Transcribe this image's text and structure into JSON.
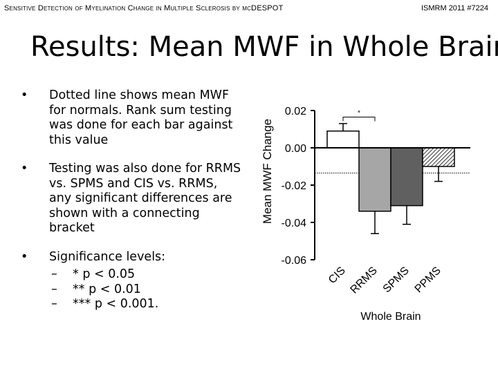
{
  "header": {
    "left": "Sensitive Detection of Myelination Change in Multiple Sclerosis by mcDESPOT",
    "right": "ISMRM 2011 #7224"
  },
  "slide": {
    "title": "Results: Mean MWF in Whole Brain",
    "bullets": [
      "Dotted line shows mean MWF for normals. Rank sum testing was done for each bar against this value",
      "Testing was also done for RRMS vs. SPMS and CIS vs. RRMS, any significant differences are shown with a connecting bracket",
      "Significance levels:"
    ],
    "sub_bullets": [
      "* p < 0.05",
      "** p < 0.01",
      "*** p < 0.001."
    ],
    "bullet_symbol": "•",
    "sub_bullet_symbol": "–"
  },
  "chart_data": {
    "type": "bar",
    "xlabel": "Whole Brain",
    "ylabel": "Mean MWF Change",
    "ylim": [
      -0.06,
      0.02
    ],
    "yticks": [
      "0.02",
      "0.00",
      "-0.02",
      "-0.04",
      "-0.06"
    ],
    "categories": [
      "CIS",
      "RRMS",
      "SPMS",
      "PPMS"
    ],
    "values": [
      0.009,
      -0.034,
      -0.031,
      -0.01
    ],
    "errors": [
      0.004,
      0.012,
      0.01,
      0.008
    ],
    "bar_colors": [
      "#ffffff",
      "#a6a6a6",
      "#606060",
      "hatched"
    ],
    "normal_reference_line": -0.0135,
    "significance": [
      {
        "from": "CIS",
        "to": "RRMS",
        "label": "*"
      }
    ]
  }
}
